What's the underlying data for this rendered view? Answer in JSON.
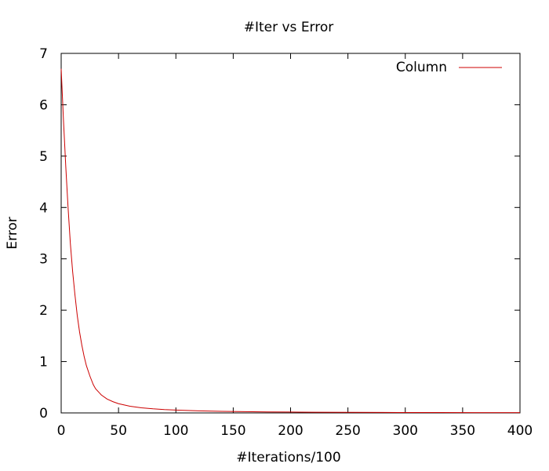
{
  "chart_data": {
    "type": "line",
    "title": "#Iter vs Error",
    "xlabel": "#Iterations/100",
    "ylabel": "Error",
    "xlim": [
      0,
      400
    ],
    "ylim": [
      0,
      7
    ],
    "xticks": [
      "0",
      "50",
      "100",
      "150",
      "200",
      "250",
      "300",
      "350",
      "400"
    ],
    "yticks": [
      "0",
      "1",
      "2",
      "3",
      "4",
      "5",
      "6",
      "7"
    ],
    "grid": false,
    "legend_position": "top-right",
    "series": [
      {
        "name": "Column",
        "color": "#cc0000",
        "x": [
          0,
          1,
          2,
          3,
          4,
          5,
          6,
          7,
          8,
          10,
          12,
          14,
          16,
          18,
          20,
          22,
          25,
          28,
          30,
          35,
          40,
          45,
          50,
          60,
          70,
          80,
          90,
          100,
          120,
          140,
          160,
          180,
          200,
          220,
          250,
          280,
          300,
          330,
          360,
          380,
          400
        ],
        "y": [
          6.7,
          6.2,
          5.7,
          5.25,
          4.8,
          4.4,
          4.0,
          3.65,
          3.3,
          2.75,
          2.3,
          1.9,
          1.58,
          1.32,
          1.1,
          0.92,
          0.72,
          0.55,
          0.47,
          0.35,
          0.27,
          0.22,
          0.18,
          0.13,
          0.1,
          0.08,
          0.065,
          0.055,
          0.04,
          0.03,
          0.025,
          0.02,
          0.017,
          0.014,
          0.011,
          0.009,
          0.008,
          0.007,
          0.006,
          0.006,
          0.005
        ]
      }
    ]
  }
}
